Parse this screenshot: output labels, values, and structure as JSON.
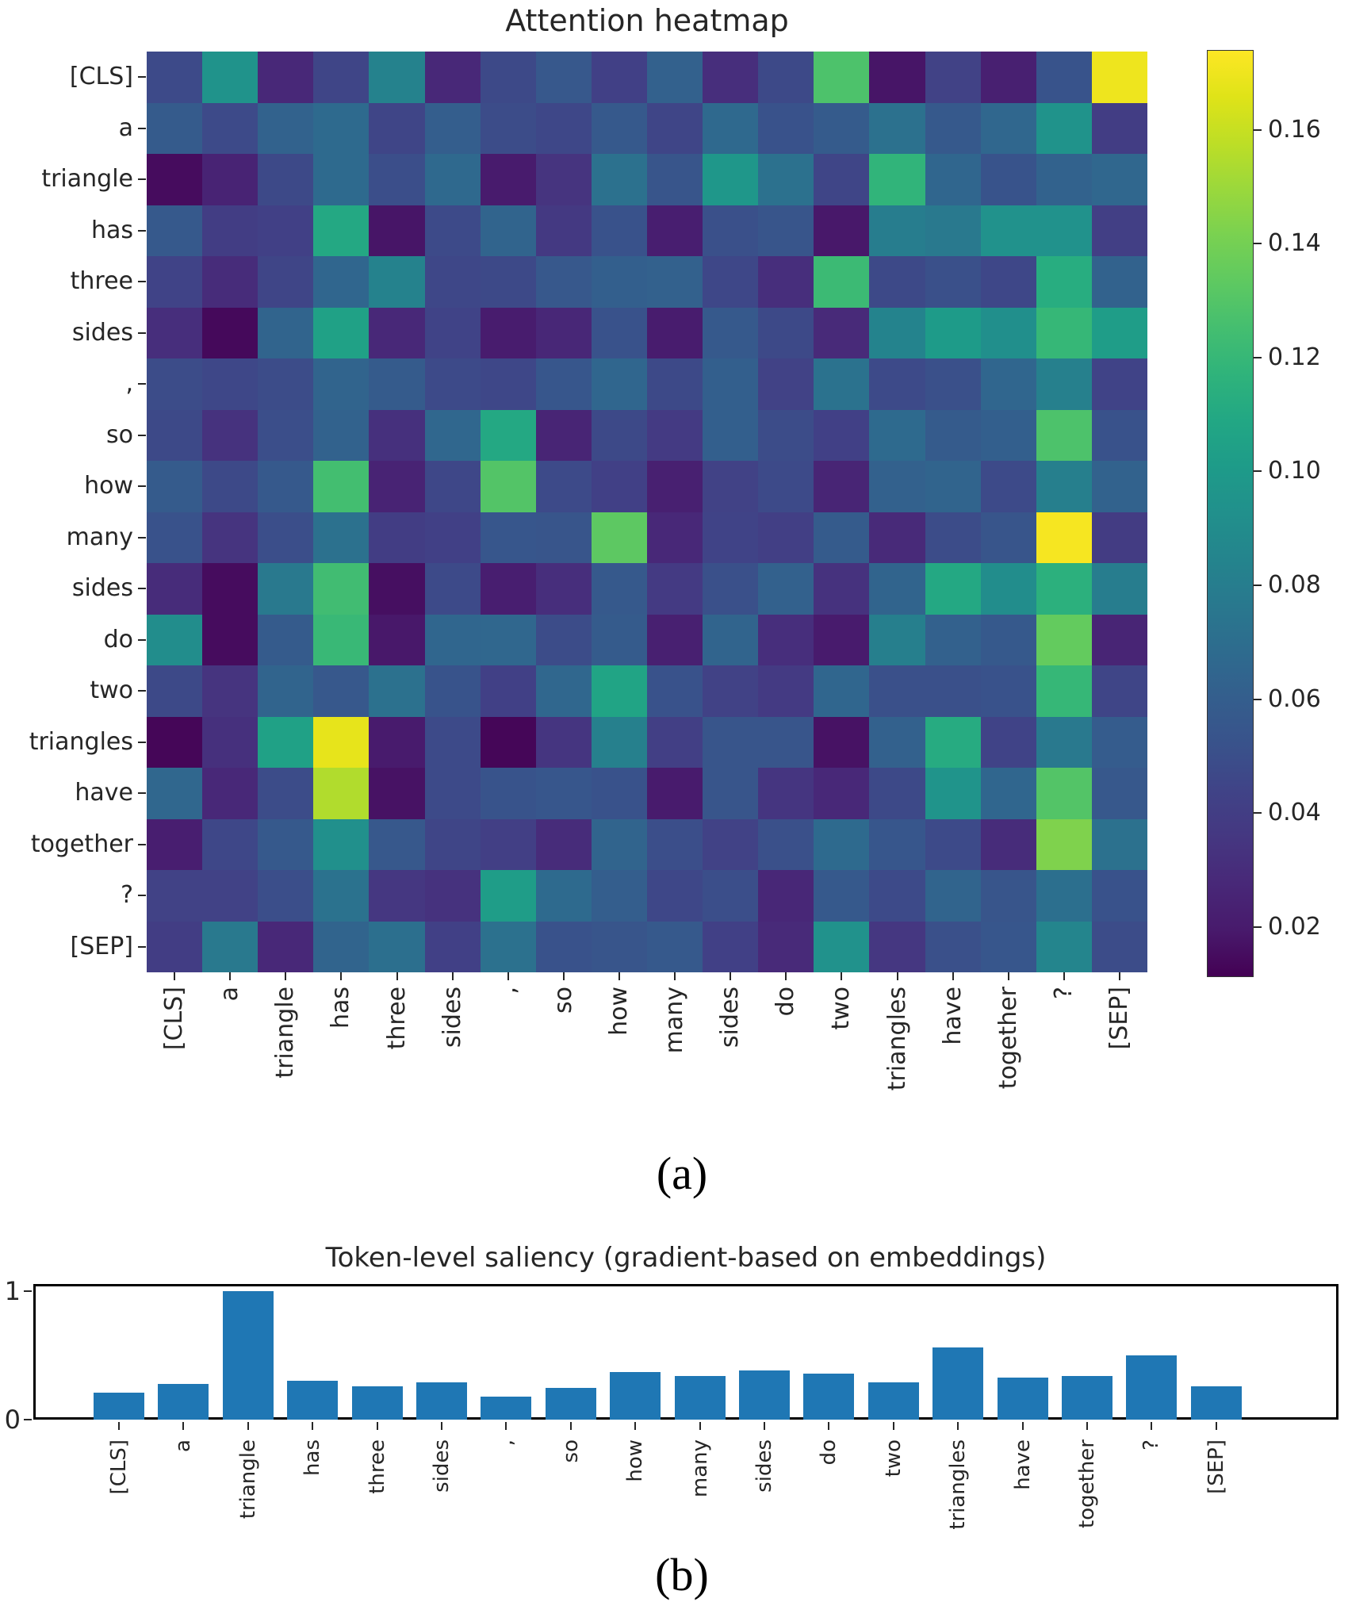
{
  "captions": {
    "a": "(a)",
    "b": "(b)"
  },
  "chart_data": [
    {
      "type": "heatmap",
      "title": "Attention heatmap",
      "colormap": "viridis",
      "vmin": 0.0115,
      "vmax": 0.174,
      "colorbar_ticks": [
        0.16,
        0.14,
        0.12,
        0.1,
        0.08,
        0.06,
        0.04,
        0.02
      ],
      "x_tokens": [
        "[CLS]",
        "a",
        "triangle",
        "has",
        "three",
        "sides",
        ",",
        "so",
        "how",
        "many",
        "sides",
        "do",
        "two",
        "triangles",
        "have",
        "together",
        "?",
        "[SEP]"
      ],
      "y_tokens": [
        "[CLS]",
        "a",
        "triangle",
        "has",
        "three",
        "sides",
        ",",
        "so",
        "how",
        "many",
        "sides",
        "do",
        "two",
        "triangles",
        "have",
        "together",
        "?",
        "[SEP]"
      ],
      "values": [
        [
          0.048,
          0.095,
          0.028,
          0.045,
          0.083,
          0.028,
          0.047,
          0.056,
          0.042,
          0.062,
          0.031,
          0.047,
          0.128,
          0.018,
          0.043,
          0.023,
          0.053,
          0.17
        ],
        [
          0.058,
          0.048,
          0.063,
          0.068,
          0.045,
          0.06,
          0.049,
          0.046,
          0.057,
          0.045,
          0.067,
          0.052,
          0.058,
          0.072,
          0.057,
          0.066,
          0.095,
          0.04
        ],
        [
          0.015,
          0.025,
          0.047,
          0.068,
          0.05,
          0.067,
          0.02,
          0.034,
          0.072,
          0.054,
          0.098,
          0.072,
          0.045,
          0.118,
          0.065,
          0.053,
          0.063,
          0.066
        ],
        [
          0.057,
          0.04,
          0.042,
          0.11,
          0.018,
          0.048,
          0.064,
          0.037,
          0.052,
          0.022,
          0.051,
          0.054,
          0.019,
          0.08,
          0.077,
          0.094,
          0.094,
          0.041
        ],
        [
          0.044,
          0.03,
          0.045,
          0.065,
          0.083,
          0.046,
          0.047,
          0.056,
          0.061,
          0.062,
          0.046,
          0.031,
          0.122,
          0.047,
          0.051,
          0.046,
          0.113,
          0.063
        ],
        [
          0.031,
          0.014,
          0.064,
          0.105,
          0.028,
          0.044,
          0.021,
          0.027,
          0.052,
          0.021,
          0.057,
          0.047,
          0.029,
          0.084,
          0.101,
          0.092,
          0.12,
          0.102
        ],
        [
          0.049,
          0.046,
          0.049,
          0.064,
          0.058,
          0.048,
          0.046,
          0.055,
          0.065,
          0.047,
          0.061,
          0.043,
          0.073,
          0.048,
          0.051,
          0.065,
          0.082,
          0.044
        ],
        [
          0.047,
          0.033,
          0.05,
          0.063,
          0.032,
          0.066,
          0.11,
          0.026,
          0.047,
          0.038,
          0.061,
          0.049,
          0.042,
          0.068,
          0.058,
          0.061,
          0.128,
          0.052
        ],
        [
          0.058,
          0.047,
          0.057,
          0.125,
          0.025,
          0.046,
          0.13,
          0.048,
          0.042,
          0.023,
          0.043,
          0.048,
          0.026,
          0.062,
          0.064,
          0.048,
          0.081,
          0.063
        ],
        [
          0.052,
          0.034,
          0.05,
          0.072,
          0.04,
          0.042,
          0.055,
          0.054,
          0.133,
          0.028,
          0.044,
          0.041,
          0.058,
          0.029,
          0.049,
          0.054,
          0.172,
          0.039
        ],
        [
          0.03,
          0.015,
          0.077,
          0.124,
          0.016,
          0.048,
          0.022,
          0.031,
          0.057,
          0.038,
          0.051,
          0.062,
          0.033,
          0.064,
          0.11,
          0.091,
          0.115,
          0.08
        ],
        [
          0.091,
          0.015,
          0.058,
          0.121,
          0.019,
          0.065,
          0.066,
          0.049,
          0.058,
          0.023,
          0.064,
          0.031,
          0.02,
          0.081,
          0.062,
          0.057,
          0.135,
          0.026
        ],
        [
          0.047,
          0.034,
          0.064,
          0.056,
          0.072,
          0.053,
          0.042,
          0.066,
          0.107,
          0.052,
          0.043,
          0.038,
          0.065,
          0.051,
          0.051,
          0.052,
          0.12,
          0.045
        ],
        [
          0.013,
          0.032,
          0.105,
          0.168,
          0.02,
          0.048,
          0.013,
          0.035,
          0.082,
          0.041,
          0.054,
          0.054,
          0.017,
          0.062,
          0.112,
          0.044,
          0.077,
          0.059
        ],
        [
          0.066,
          0.028,
          0.049,
          0.155,
          0.017,
          0.048,
          0.053,
          0.055,
          0.052,
          0.02,
          0.054,
          0.035,
          0.028,
          0.047,
          0.096,
          0.065,
          0.13,
          0.056
        ],
        [
          0.022,
          0.046,
          0.057,
          0.093,
          0.056,
          0.045,
          0.041,
          0.03,
          0.064,
          0.05,
          0.043,
          0.051,
          0.068,
          0.055,
          0.048,
          0.03,
          0.143,
          0.072
        ],
        [
          0.043,
          0.043,
          0.05,
          0.073,
          0.036,
          0.033,
          0.102,
          0.068,
          0.06,
          0.046,
          0.05,
          0.027,
          0.057,
          0.048,
          0.064,
          0.054,
          0.071,
          0.052
        ],
        [
          0.04,
          0.077,
          0.028,
          0.064,
          0.071,
          0.042,
          0.072,
          0.052,
          0.054,
          0.057,
          0.042,
          0.029,
          0.094,
          0.036,
          0.051,
          0.055,
          0.085,
          0.049
        ]
      ]
    },
    {
      "type": "bar",
      "title": "Token-level saliency (gradient-based on embeddings)",
      "categories": [
        "[CLS]",
        "a",
        "triangle",
        "has",
        "three",
        "sides",
        ",",
        "so",
        "how",
        "many",
        "sides",
        "do",
        "two",
        "triangles",
        "have",
        "together",
        "?",
        "[SEP]"
      ],
      "values": [
        0.21,
        0.28,
        1.0,
        0.3,
        0.26,
        0.29,
        0.18,
        0.25,
        0.37,
        0.34,
        0.38,
        0.36,
        0.29,
        0.56,
        0.33,
        0.34,
        0.5,
        0.26
      ],
      "ylim": [
        0,
        1.05
      ],
      "yticks": [
        0,
        1
      ],
      "xlabel": "",
      "ylabel": "",
      "grid": false,
      "legend": "none",
      "bar_color": "#1f77b4"
    }
  ]
}
